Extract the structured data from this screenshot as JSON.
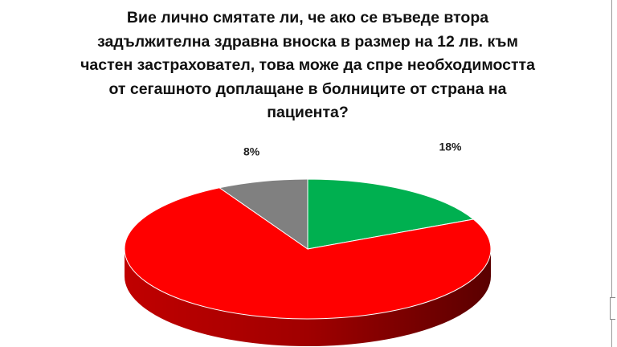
{
  "chart_data": {
    "type": "pie",
    "style": "3d",
    "title": "Вие лично смятате ли, че ако се въведе втора задължителна здравна вноска в размер на 12 лв. към частен застраховател, това може да спре необходимостта от сегашното доплащане в болниците от страна на пациента?",
    "slices": [
      {
        "value": 18,
        "label": "18%",
        "color": "#00b050"
      },
      {
        "value": 74,
        "label": "",
        "color": "#ff0000"
      },
      {
        "value": 8,
        "label": "8%",
        "color": "#808080"
      }
    ],
    "start": "12 o'clock",
    "direction": "clockwise",
    "legend": "none"
  }
}
